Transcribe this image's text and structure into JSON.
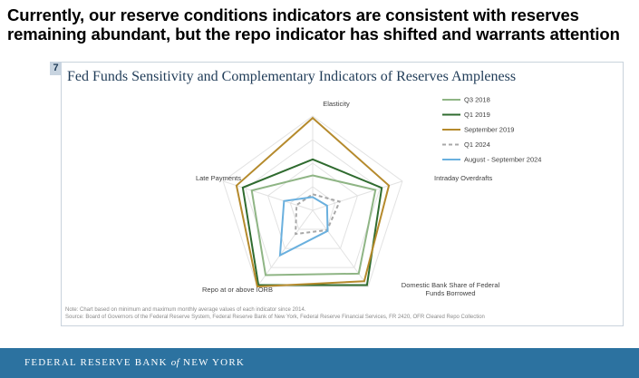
{
  "headline": "Currently, our reserve conditions indicators are consistent with reserves remaining abundant, but the repo indicator has shifted and warrants attention",
  "slide_number": "7",
  "footer": {
    "prefix": "FEDERAL RESERVE BANK",
    "of": "of",
    "suffix": "NEW YORK"
  },
  "note_line1": "Note: Chart based on minimum and maximum monthly average values of each indicator since 2014.",
  "note_line2": "Source: Board of Governors of the Federal Reserve System, Federal Reserve Bank of New York, Federal Reserve Financial Services, FR 2420, OFR Cleared Repo Collection",
  "colors": {
    "footer_bg": "#2c72a0",
    "title": "#1f3b57"
  },
  "chart_data": {
    "type": "radar",
    "title": "Fed Funds Sensitivity and Complementary Indicators of Reserves Ampleness",
    "axes": [
      "Elasticity",
      "Intraday Overdrafts",
      "Domestic Bank Share of Federal Funds Borrowed",
      "Repo at or above IORB",
      "Late Payments"
    ],
    "axis_label_lines": [
      [
        "Elasticity"
      ],
      [
        "Intraday Overdrafts"
      ],
      [
        "Domestic Bank Share of Federal",
        "Funds Borrowed"
      ],
      [
        "Repo at or above IORB"
      ],
      [
        "Late Payments"
      ]
    ],
    "range": [
      0,
      1
    ],
    "grid_levels": 4,
    "legend_position": "top-right",
    "series": [
      {
        "name": "Q3 2018",
        "color": "#8fb585",
        "dash": false,
        "values": [
          0.37,
          0.7,
          0.83,
          0.85,
          0.68
        ]
      },
      {
        "name": "Q1 2019",
        "color": "#2f6b2f",
        "dash": false,
        "values": [
          0.54,
          0.77,
          0.98,
          0.98,
          0.78
        ]
      },
      {
        "name": "September 2019",
        "color": "#b58a2c",
        "dash": false,
        "values": [
          0.98,
          0.85,
          0.93,
          1.0,
          0.85
        ]
      },
      {
        "name": "Q1 2024",
        "color": "#a8a8a8",
        "dash": true,
        "values": [
          0.17,
          0.3,
          0.26,
          0.31,
          0.18
        ]
      },
      {
        "name": "August - September 2024",
        "color": "#6ab0de",
        "dash": false,
        "values": [
          0.14,
          0.16,
          0.27,
          0.59,
          0.32
        ]
      }
    ]
  }
}
